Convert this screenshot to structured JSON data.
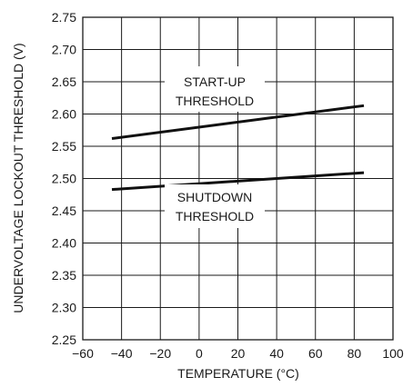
{
  "chart_data": {
    "type": "line",
    "xlabel": "TEMPERATURE (°C)",
    "ylabel": "UNDERVOLTAGE LOCKOUT THRESHOLD (V)",
    "xlim": [
      -60,
      100
    ],
    "ylim": [
      2.25,
      2.75
    ],
    "xticks": [
      -60,
      -40,
      -20,
      0,
      20,
      40,
      60,
      80,
      100
    ],
    "yticks": [
      2.25,
      2.3,
      2.35,
      2.4,
      2.45,
      2.5,
      2.55,
      2.6,
      2.65,
      2.7,
      2.75
    ],
    "xtick_labels": [
      "−60",
      "−40",
      "−20",
      "0",
      "20",
      "40",
      "60",
      "80",
      "100"
    ],
    "ytick_labels": [
      "2.25",
      "2.30",
      "2.35",
      "2.40",
      "2.45",
      "2.50",
      "2.55",
      "2.60",
      "2.65",
      "2.70",
      "2.75"
    ],
    "grid": true,
    "series": [
      {
        "x": [
          -45,
          85
        ],
        "values": [
          2.562,
          2.613
        ]
      },
      {
        "x": [
          -45,
          85
        ],
        "values": [
          2.483,
          2.509
        ]
      }
    ],
    "annotations": [
      {
        "lines": [
          "START-UP",
          "THRESHOLD"
        ]
      },
      {
        "lines": [
          "SHUTDOWN",
          "THRESHOLD"
        ]
      }
    ]
  }
}
